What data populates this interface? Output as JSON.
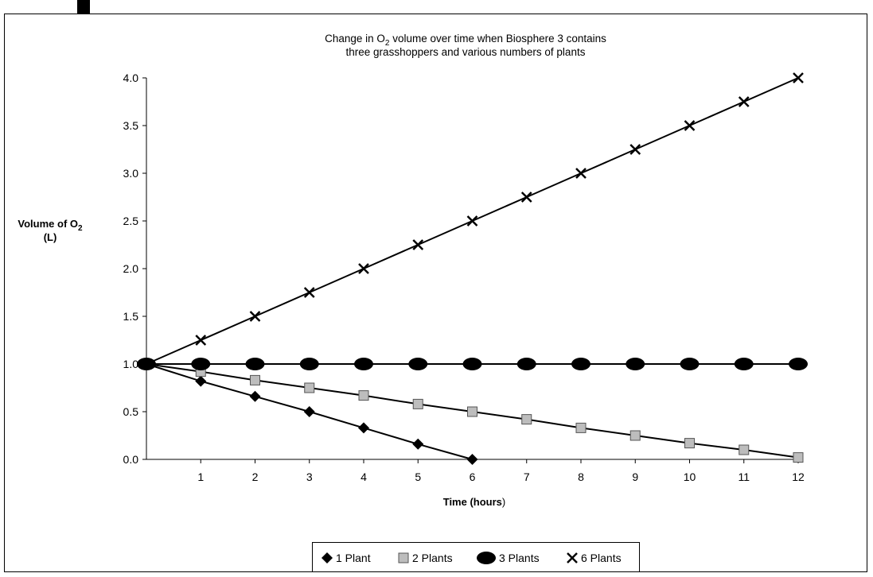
{
  "chart_data": {
    "type": "line",
    "title_line1_pre": "Change in O",
    "title_line1_sub": "2",
    "title_line1_post": " volume over time when Biosphere 3 contains",
    "title_line2": "three grasshoppers and various numbers of plants",
    "xlabel_bold": "Time (hours",
    "xlabel_paren": ")",
    "ylabel_line1_pre": "Volume of O",
    "ylabel_line1_sub": "2",
    "ylabel_line2": "(L)",
    "xlim": [
      0,
      12
    ],
    "ylim": [
      0,
      4
    ],
    "x_ticks": [
      "1",
      "2",
      "3",
      "4",
      "5",
      "6",
      "7",
      "8",
      "9",
      "10",
      "11",
      "12"
    ],
    "y_ticks": [
      "0.0",
      "0.5",
      "1.0",
      "1.5",
      "2.0",
      "2.5",
      "3.0",
      "3.5",
      "4.0"
    ],
    "legend_placement": "bottom",
    "series": [
      {
        "name": "1 Plant",
        "marker": "diamond",
        "x": [
          0,
          1,
          2,
          3,
          4,
          5,
          6
        ],
        "y": [
          1.0,
          0.82,
          0.66,
          0.5,
          0.33,
          0.16,
          0.0
        ]
      },
      {
        "name": "2 Plants",
        "marker": "square",
        "x": [
          0,
          1,
          2,
          3,
          4,
          5,
          6,
          7,
          8,
          9,
          10,
          11,
          12
        ],
        "y": [
          1.0,
          0.92,
          0.83,
          0.75,
          0.67,
          0.58,
          0.5,
          0.42,
          0.33,
          0.25,
          0.17,
          0.1,
          0.02
        ]
      },
      {
        "name": "3 Plants",
        "marker": "ellipse",
        "x": [
          0,
          1,
          2,
          3,
          4,
          5,
          6,
          7,
          8,
          9,
          10,
          11,
          12
        ],
        "y": [
          1.0,
          1.0,
          1.0,
          1.0,
          1.0,
          1.0,
          1.0,
          1.0,
          1.0,
          1.0,
          1.0,
          1.0,
          1.0
        ]
      },
      {
        "name": "6 Plants",
        "marker": "x",
        "x": [
          0,
          1,
          2,
          3,
          4,
          5,
          6,
          7,
          8,
          9,
          10,
          11,
          12
        ],
        "y": [
          1.0,
          1.25,
          1.5,
          1.75,
          2.0,
          2.25,
          2.5,
          2.75,
          3.0,
          3.25,
          3.5,
          3.75,
          4.0
        ]
      }
    ]
  }
}
